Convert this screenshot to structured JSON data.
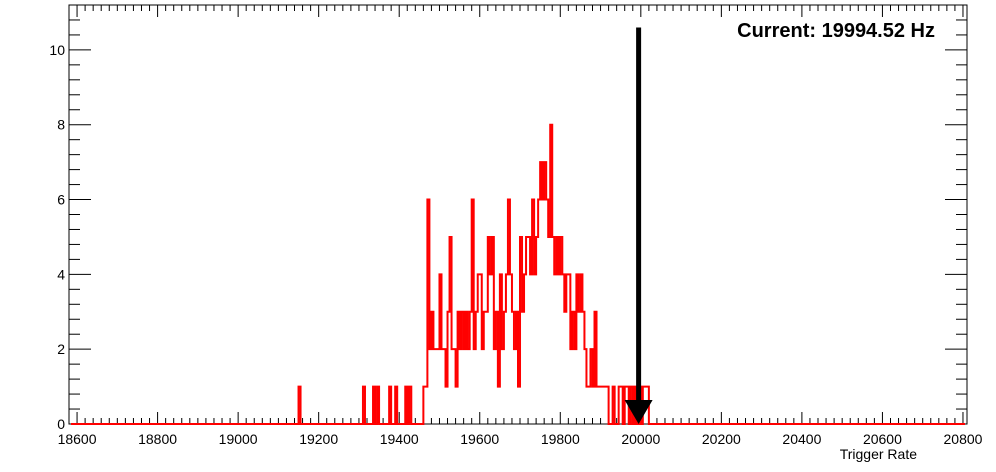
{
  "chart_data": {
    "type": "histogram-step",
    "xlabel": "Trigger Rate",
    "ylabel": "",
    "xlim": [
      18580,
      20810
    ],
    "ylim": [
      0,
      11.2
    ],
    "x_ticks": [
      18600,
      18800,
      19000,
      19200,
      19400,
      19600,
      19800,
      20000,
      20200,
      20400,
      20600,
      20800
    ],
    "x_tick_labels": [
      "18600",
      "18800",
      "19000",
      "19200",
      "19400",
      "19600",
      "19800",
      "20000",
      "20200",
      "20400",
      "20600",
      "20800"
    ],
    "y_ticks": [
      0,
      2,
      4,
      6,
      8,
      10
    ],
    "y_tick_labels": [
      "0",
      "2",
      "4",
      "6",
      "8",
      "10"
    ],
    "grid": false,
    "legend": "none",
    "bin_width": 5,
    "series": [
      {
        "color": "#ff0000",
        "bins": [
          [
            19150,
            1
          ],
          [
            19310,
            1
          ],
          [
            19335,
            1
          ],
          [
            19345,
            1
          ],
          [
            19375,
            1
          ],
          [
            19390,
            1
          ],
          [
            19415,
            1
          ],
          [
            19425,
            1
          ],
          [
            19460,
            1
          ],
          [
            19465,
            1
          ],
          [
            19470,
            6
          ],
          [
            19475,
            2
          ],
          [
            19480,
            3
          ],
          [
            19485,
            2
          ],
          [
            19490,
            2
          ],
          [
            19495,
            2
          ],
          [
            19500,
            4
          ],
          [
            19505,
            2
          ],
          [
            19510,
            2
          ],
          [
            19515,
            1
          ],
          [
            19520,
            3
          ],
          [
            19525,
            5
          ],
          [
            19530,
            2
          ],
          [
            19535,
            2
          ],
          [
            19540,
            1
          ],
          [
            19545,
            3
          ],
          [
            19550,
            2
          ],
          [
            19555,
            3
          ],
          [
            19560,
            2
          ],
          [
            19565,
            3
          ],
          [
            19570,
            2
          ],
          [
            19575,
            3
          ],
          [
            19580,
            6
          ],
          [
            19585,
            2
          ],
          [
            19590,
            3
          ],
          [
            19595,
            4
          ],
          [
            19600,
            4
          ],
          [
            19605,
            2
          ],
          [
            19610,
            3
          ],
          [
            19615,
            3
          ],
          [
            19620,
            5
          ],
          [
            19625,
            4
          ],
          [
            19630,
            5
          ],
          [
            19635,
            2
          ],
          [
            19640,
            3
          ],
          [
            19645,
            1
          ],
          [
            19650,
            4
          ],
          [
            19655,
            2
          ],
          [
            19660,
            3
          ],
          [
            19665,
            4
          ],
          [
            19670,
            6
          ],
          [
            19675,
            4
          ],
          [
            19680,
            3
          ],
          [
            19685,
            2
          ],
          [
            19690,
            3
          ],
          [
            19695,
            1
          ],
          [
            19700,
            5
          ],
          [
            19705,
            3
          ],
          [
            19710,
            4
          ],
          [
            19715,
            5
          ],
          [
            19720,
            5
          ],
          [
            19725,
            4
          ],
          [
            19730,
            6
          ],
          [
            19735,
            4
          ],
          [
            19740,
            5
          ],
          [
            19745,
            6
          ],
          [
            19750,
            7
          ],
          [
            19755,
            6
          ],
          [
            19760,
            7
          ],
          [
            19765,
            6
          ],
          [
            19770,
            5
          ],
          [
            19775,
            8
          ],
          [
            19780,
            5
          ],
          [
            19785,
            4
          ],
          [
            19790,
            5
          ],
          [
            19795,
            4
          ],
          [
            19800,
            5
          ],
          [
            19805,
            4
          ],
          [
            19810,
            3
          ],
          [
            19815,
            4
          ],
          [
            19820,
            4
          ],
          [
            19825,
            2
          ],
          [
            19830,
            3
          ],
          [
            19835,
            2
          ],
          [
            19840,
            4
          ],
          [
            19845,
            3
          ],
          [
            19850,
            4
          ],
          [
            19855,
            3
          ],
          [
            19860,
            2
          ],
          [
            19865,
            1
          ],
          [
            19870,
            1
          ],
          [
            19875,
            2
          ],
          [
            19880,
            1
          ],
          [
            19885,
            3
          ],
          [
            19890,
            1
          ],
          [
            19895,
            1
          ],
          [
            19900,
            1
          ],
          [
            19905,
            1
          ],
          [
            19910,
            1
          ],
          [
            19915,
            1
          ],
          [
            19930,
            1
          ],
          [
            19945,
            1
          ],
          [
            19950,
            1
          ],
          [
            19960,
            1
          ],
          [
            19965,
            1
          ],
          [
            19975,
            1
          ],
          [
            19985,
            1
          ],
          [
            19995,
            1
          ],
          [
            20005,
            1
          ],
          [
            20010,
            1
          ],
          [
            20015,
            1
          ]
        ]
      }
    ],
    "marker": {
      "x": 19994.52,
      "y_top": 10.6,
      "y_bottom": 0,
      "color": "#000000"
    },
    "annotation": "Current: 19994.52 Hz"
  }
}
